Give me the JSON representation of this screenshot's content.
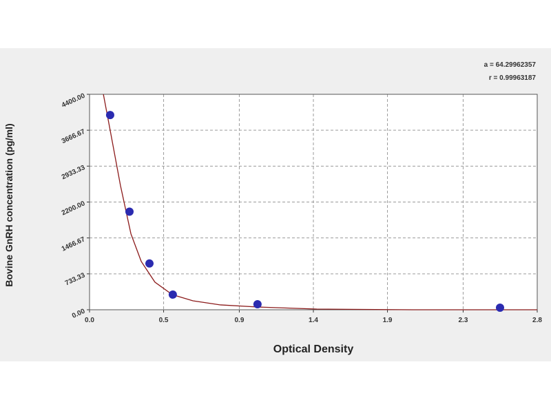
{
  "chart_data": {
    "type": "scatter",
    "x_label": "Optical Density",
    "y_label": "Bovine GnRH concentration (pg/ml)",
    "annotations": [
      "a = 64.29962357",
      "r = 0.99963187"
    ],
    "xlim": [
      0,
      2.78
    ],
    "ylim": [
      0,
      4400
    ],
    "xticks": [
      {
        "value": 0,
        "label": "0.0"
      },
      {
        "value": 0.46,
        "label": "0.5"
      },
      {
        "value": 0.93,
        "label": "0.9"
      },
      {
        "value": 1.39,
        "label": "1.4"
      },
      {
        "value": 1.85,
        "label": "1.9"
      },
      {
        "value": 2.32,
        "label": "2.3"
      },
      {
        "value": 2.78,
        "label": "2.8"
      }
    ],
    "yticks": [
      {
        "value": 0,
        "label": "0.00"
      },
      {
        "value": 733.33,
        "label": "733.33"
      },
      {
        "value": 1466.67,
        "label": "1466.67"
      },
      {
        "value": 2200,
        "label": "2200.00"
      },
      {
        "value": 2933.33,
        "label": "2933.33"
      },
      {
        "value": 3666.67,
        "label": "3666.67"
      },
      {
        "value": 4400,
        "label": "4400.00"
      }
    ],
    "grid": true,
    "series": [
      {
        "mode": "line",
        "color": "#8b1a1a",
        "x": [
          0.086,
          0.128,
          0.192,
          0.257,
          0.321,
          0.406,
          0.513,
          0.642,
          0.813,
          1.043,
          1.411,
          2.01,
          2.78
        ],
        "values": [
          4400,
          3667,
          2538,
          1551,
          987,
          564,
          310,
          183,
          99,
          56,
          14,
          0,
          0
        ]
      },
      {
        "mode": "markers",
        "color": "#2b2bb0",
        "x": [
          0.128,
          0.248,
          0.372,
          0.517,
          1.043,
          2.549
        ],
        "values": [
          3977,
          2003,
          945,
          310,
          113,
          42
        ]
      }
    ]
  }
}
